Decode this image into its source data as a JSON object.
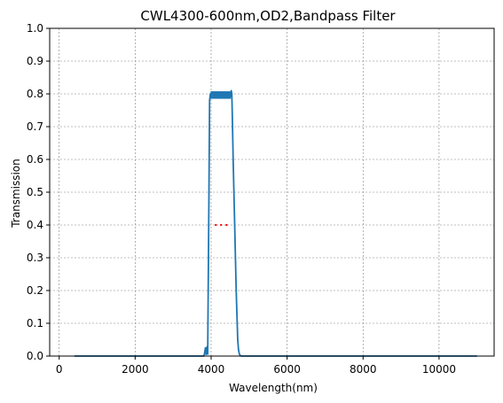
{
  "chart_data": {
    "type": "line",
    "title": "CWL4300-600nm,OD2,Bandpass Filter",
    "xlabel": "Wavelength(nm)",
    "ylabel": "Transmission",
    "xlim": [
      -250,
      11450
    ],
    "ylim": [
      0,
      1.0
    ],
    "xticks": [
      0,
      2000,
      4000,
      6000,
      8000,
      10000
    ],
    "yticks": [
      0,
      0.1,
      0.2,
      0.3,
      0.4,
      0.5,
      0.6,
      0.7,
      0.8,
      0.9,
      1.0
    ],
    "grid": true,
    "series": [
      {
        "color": "#1f77b4",
        "x": [
          400,
          3800,
          3820,
          3850,
          3870,
          3890,
          3910,
          3940,
          3960,
          3980,
          4000,
          4050,
          4100,
          4150,
          4200,
          4250,
          4300,
          4350,
          4400,
          4450,
          4500,
          4520,
          4530,
          4545,
          4560,
          4580,
          4620,
          4660,
          4700,
          4720,
          4740,
          4760,
          4800,
          11000
        ],
        "y": [
          0,
          0,
          0.004,
          0.025,
          0.005,
          0.028,
          0.006,
          0.45,
          0.78,
          0.8,
          0.79,
          0.8,
          0.79,
          0.8,
          0.79,
          0.8,
          0.79,
          0.8,
          0.79,
          0.8,
          0.79,
          0.8,
          0.81,
          0.8,
          0.72,
          0.6,
          0.4,
          0.2,
          0.05,
          0.02,
          0.008,
          0.002,
          0,
          0
        ]
      }
    ],
    "annotations": [
      {
        "type": "dotted-segment",
        "color": "#ff0000",
        "x": [
          4100,
          4500
        ],
        "y": 0.4
      }
    ]
  }
}
